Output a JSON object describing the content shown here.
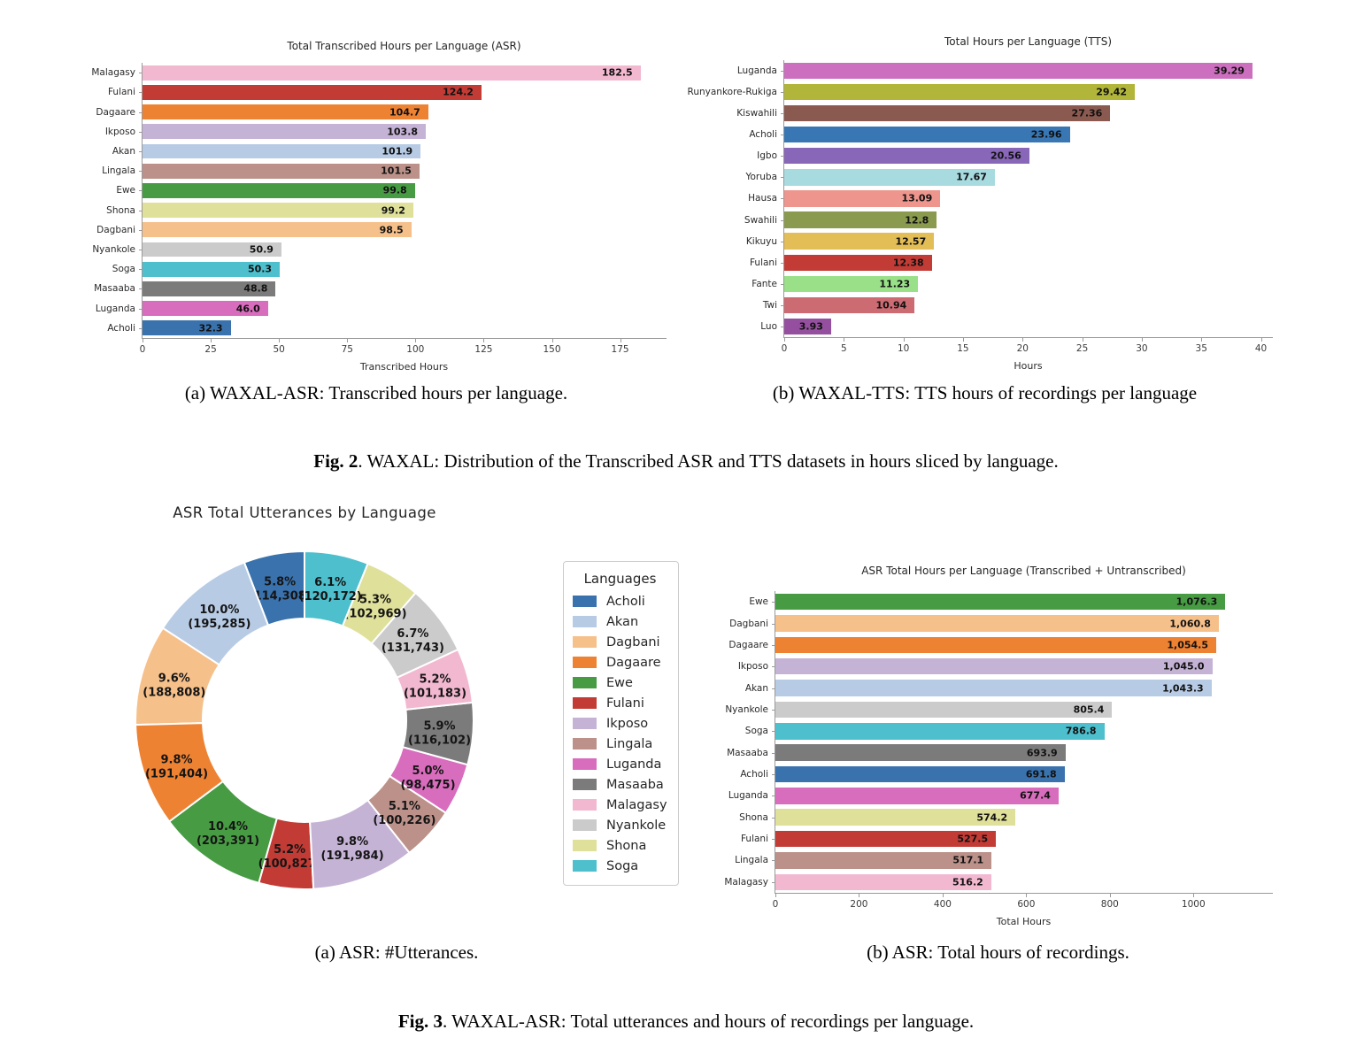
{
  "fig2": {
    "caption_a": "(a) WAXAL-ASR: Transcribed hours per language.",
    "caption_b": "(b) WAXAL-TTS: TTS hours of recordings per language",
    "fig_label": "Fig. 2",
    "fig_text": ". WAXAL: Distribution of the Transcribed ASR and TTS datasets in hours sliced by language."
  },
  "fig3": {
    "caption_a": "(a) ASR: #Utterances.",
    "caption_b": "(b) ASR: Total hours of recordings.",
    "fig_label": "Fig. 3",
    "fig_text": ". WAXAL-ASR: Total utterances and hours of recordings per language."
  },
  "chart_data": [
    {
      "id": "asr-transcribed-hours",
      "type": "bar",
      "orientation": "horizontal",
      "title": "Total Transcribed Hours per Language (ASR)",
      "xlabel": "Transcribed Hours",
      "xlim": [
        0,
        192
      ],
      "xticks": [
        0,
        25,
        50,
        75,
        100,
        125,
        150,
        175
      ],
      "grid": false,
      "categories": [
        "Malagasy",
        "Fulani",
        "Dagaare",
        "Ikposo",
        "Akan",
        "Lingala",
        "Ewe",
        "Shona",
        "Dagbani",
        "Nyankole",
        "Soga",
        "Masaaba",
        "Luganda",
        "Acholi"
      ],
      "values": [
        182.5,
        124.2,
        104.7,
        103.8,
        101.9,
        101.5,
        99.8,
        99.2,
        98.5,
        50.9,
        50.3,
        48.8,
        46.0,
        32.3
      ],
      "labels": [
        "182.5",
        "124.2",
        "104.7",
        "103.8",
        "101.9",
        "101.5",
        "99.8",
        "99.2",
        "98.5",
        "50.9",
        "50.3",
        "48.8",
        "46.0",
        "32.3"
      ],
      "colors": [
        "#f2b8d0",
        "#c23b35",
        "#ee8233",
        "#c5b3d6",
        "#b7cbe5",
        "#bb9189",
        "#479c43",
        "#dfe09a",
        "#f6c08a",
        "#cbcbcb",
        "#4dbfcd",
        "#7b7b7b",
        "#d96dbd",
        "#3a72ad"
      ]
    },
    {
      "id": "tts-total-hours",
      "type": "bar",
      "orientation": "horizontal",
      "title": "Total Hours per Language (TTS)",
      "xlabel": "Hours",
      "xlim": [
        0,
        41
      ],
      "xticks": [
        0,
        5,
        10,
        15,
        20,
        25,
        30,
        35,
        40
      ],
      "grid": false,
      "categories": [
        "Luganda",
        "Runyankore-Rukiga",
        "Kiswahili",
        "Acholi",
        "Igbo",
        "Yoruba",
        "Hausa",
        "Swahili",
        "Kikuyu",
        "Fulani",
        "Fante",
        "Twi",
        "Luo"
      ],
      "values": [
        39.29,
        29.42,
        27.36,
        23.96,
        20.56,
        17.67,
        13.09,
        12.8,
        12.57,
        12.38,
        11.23,
        10.94,
        3.93
      ],
      "labels": [
        "39.29",
        "29.42",
        "27.36",
        "23.96",
        "20.56",
        "17.67",
        "13.09",
        "12.8",
        "12.57",
        "12.38",
        "11.23",
        "10.94",
        "3.93"
      ],
      "colors": [
        "#cc6fbe",
        "#b1b63a",
        "#8a5a50",
        "#3876b4",
        "#8866b8",
        "#a8dbe0",
        "#ee958d",
        "#8a9a4e",
        "#e3bd56",
        "#c23b35",
        "#99e089",
        "#cc6b72",
        "#94509e"
      ]
    },
    {
      "id": "asr-total-utterances",
      "type": "donut",
      "title": "ASR Total Utterances by Language",
      "legend_title": "Languages",
      "start_angle": 90,
      "direction": "counterclockwise",
      "inner_radius_ratio": 0.6,
      "slices": [
        {
          "label": "Acholi",
          "pct": 5.8,
          "count": 114308,
          "count_label": "114,308",
          "color": "#3a72ad"
        },
        {
          "label": "Akan",
          "pct": 10.0,
          "count": 195285,
          "count_label": "195,285",
          "color": "#b7cbe5"
        },
        {
          "label": "Dagbani",
          "pct": 9.6,
          "count": 188808,
          "count_label": "188,808",
          "color": "#f6c08a"
        },
        {
          "label": "Dagaare",
          "pct": 9.8,
          "count": 191404,
          "count_label": "191,404",
          "color": "#ee8233"
        },
        {
          "label": "Ewe",
          "pct": 10.4,
          "count": 203391,
          "count_label": "203,391",
          "color": "#479c43"
        },
        {
          "label": "Fulani",
          "pct": 5.2,
          "count": 100827,
          "count_label": "100,827",
          "color": "#c23b35"
        },
        {
          "label": "Ikposo",
          "pct": 9.8,
          "count": 191984,
          "count_label": "191,984",
          "color": "#c5b3d6"
        },
        {
          "label": "Lingala",
          "pct": 5.1,
          "count": 100226,
          "count_label": "100,226",
          "color": "#bb9189"
        },
        {
          "label": "Luganda",
          "pct": 5.0,
          "count": 98475,
          "count_label": "98,475",
          "color": "#d96dbd"
        },
        {
          "label": "Masaaba",
          "pct": 5.9,
          "count": 116102,
          "count_label": "116,102",
          "color": "#7b7b7b"
        },
        {
          "label": "Malagasy",
          "pct": 5.2,
          "count": 101183,
          "count_label": "101,183",
          "color": "#f2b8d0"
        },
        {
          "label": "Nyankole",
          "pct": 6.7,
          "count": 131743,
          "count_label": "131,743",
          "color": "#cbcbcb"
        },
        {
          "label": "Shona",
          "pct": 5.3,
          "count": 102969,
          "count_label": "102,969",
          "color": "#dfe09a"
        },
        {
          "label": "Soga",
          "pct": 6.1,
          "count": 120172,
          "count_label": "120,172",
          "color": "#4dbfcd"
        }
      ]
    },
    {
      "id": "asr-total-hours",
      "type": "bar",
      "orientation": "horizontal",
      "title": "ASR Total Hours per Language (Transcribed + Untranscribed)",
      "xlabel": "Total Hours",
      "xlim": [
        0,
        1190
      ],
      "xticks": [
        0,
        200,
        400,
        600,
        800,
        1000
      ],
      "grid": false,
      "categories": [
        "Ewe",
        "Dagbani",
        "Dagaare",
        "Ikposo",
        "Akan",
        "Nyankole",
        "Soga",
        "Masaaba",
        "Acholi",
        "Luganda",
        "Shona",
        "Fulani",
        "Lingala",
        "Malagasy"
      ],
      "values": [
        1076.3,
        1060.8,
        1054.5,
        1045.0,
        1043.3,
        805.4,
        786.8,
        693.9,
        691.8,
        677.4,
        574.2,
        527.5,
        517.1,
        516.2
      ],
      "labels": [
        "1,076.3",
        "1,060.8",
        "1,054.5",
        "1,045.0",
        "1,043.3",
        "805.4",
        "786.8",
        "693.9",
        "691.8",
        "677.4",
        "574.2",
        "527.5",
        "517.1",
        "516.2"
      ],
      "colors": [
        "#479c43",
        "#f6c08a",
        "#ee8233",
        "#c5b3d6",
        "#b7cbe5",
        "#cbcbcb",
        "#4dbfcd",
        "#7b7b7b",
        "#3a72ad",
        "#d96dbd",
        "#dfe09a",
        "#c23b35",
        "#bb9189",
        "#f2b8d0"
      ]
    }
  ]
}
